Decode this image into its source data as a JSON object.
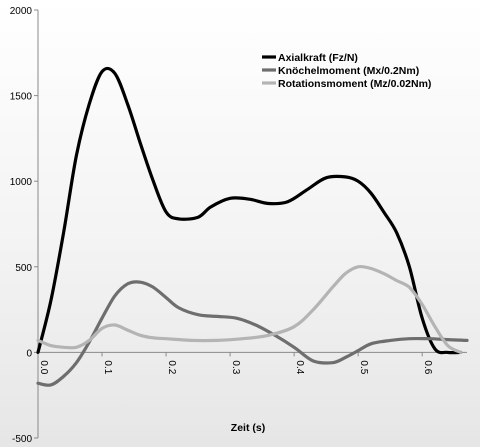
{
  "chart_data": {
    "type": "line",
    "title": "",
    "xlabel": "Zeit (s)",
    "ylabel": "",
    "xlim": [
      0.0,
      0.67
    ],
    "ylim": [
      -500,
      2000
    ],
    "x_ticks": [
      0.0,
      0.1,
      0.2,
      0.3,
      0.4,
      0.5,
      0.6
    ],
    "x_tick_labels": [
      "0.0",
      "0.1",
      "0.2",
      "0.3",
      "0.4",
      "0.5",
      "0.6"
    ],
    "y_ticks": [
      -500,
      0,
      500,
      1000,
      1500,
      2000
    ],
    "y_tick_labels": [
      "-500",
      "0",
      "500",
      "1000",
      "1500",
      "2000"
    ],
    "grid": false,
    "legend_position": "top-right",
    "series": [
      {
        "name": "Axialkraft (Fz/N)",
        "color": "#000000",
        "x": [
          0.0,
          0.02,
          0.04,
          0.06,
          0.08,
          0.1,
          0.12,
          0.14,
          0.16,
          0.18,
          0.2,
          0.22,
          0.25,
          0.27,
          0.3,
          0.33,
          0.36,
          0.39,
          0.42,
          0.45,
          0.48,
          0.5,
          0.52,
          0.54,
          0.56,
          0.58,
          0.6,
          0.62,
          0.64,
          0.66
        ],
        "y": [
          0,
          300,
          700,
          1150,
          1450,
          1640,
          1630,
          1450,
          1220,
          1000,
          820,
          780,
          790,
          850,
          900,
          895,
          870,
          880,
          950,
          1020,
          1025,
          1000,
          930,
          820,
          700,
          500,
          200,
          20,
          0,
          0
        ]
      },
      {
        "name": "Knöchelmoment (Mx/0.2Nm)",
        "color": "#6e6e6e",
        "x": [
          0.0,
          0.02,
          0.04,
          0.06,
          0.08,
          0.1,
          0.12,
          0.14,
          0.16,
          0.18,
          0.2,
          0.22,
          0.25,
          0.28,
          0.31,
          0.34,
          0.37,
          0.4,
          0.43,
          0.46,
          0.48,
          0.5,
          0.52,
          0.55,
          0.58,
          0.61,
          0.64,
          0.67
        ],
        "y": [
          -180,
          -190,
          -140,
          -60,
          60,
          200,
          330,
          400,
          410,
          380,
          320,
          260,
          220,
          210,
          200,
          160,
          100,
          30,
          -50,
          -60,
          -30,
          10,
          50,
          70,
          80,
          80,
          75,
          70
        ]
      },
      {
        "name": "Rotationsmoment (Mz/0.02Nm)",
        "color": "#b4b4b4",
        "x": [
          0.0,
          0.02,
          0.04,
          0.06,
          0.08,
          0.1,
          0.12,
          0.14,
          0.16,
          0.18,
          0.2,
          0.24,
          0.28,
          0.32,
          0.36,
          0.4,
          0.43,
          0.46,
          0.48,
          0.5,
          0.52,
          0.54,
          0.56,
          0.58,
          0.6,
          0.62,
          0.64,
          0.66
        ],
        "y": [
          70,
          40,
          30,
          30,
          70,
          140,
          160,
          130,
          100,
          85,
          80,
          70,
          70,
          80,
          100,
          150,
          250,
          380,
          460,
          500,
          490,
          460,
          420,
          380,
          280,
          150,
          40,
          0
        ]
      }
    ]
  }
}
